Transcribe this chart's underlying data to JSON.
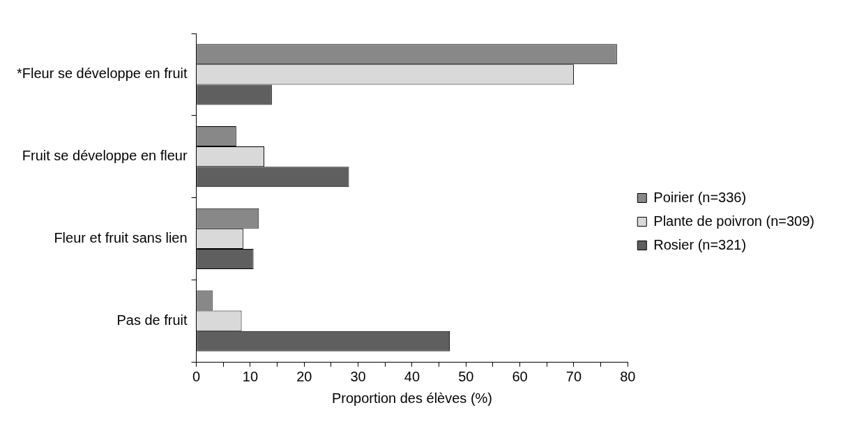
{
  "chart_data": {
    "type": "bar",
    "orientation": "horizontal",
    "xlabel": "Proportion des élèves (%)",
    "categories": [
      "*Fleur se développe en fruit",
      "Fruit se développe en fleur",
      "Fleur et fruit sans lien",
      "Pas de fruit"
    ],
    "series": [
      {
        "name": "Poirier (n=336)",
        "color": "#888888",
        "values": [
          78,
          7.4,
          11.6,
          3.0
        ]
      },
      {
        "name": "Plante de poivron (n=309)",
        "color": "#d9d9d9",
        "values": [
          70,
          12.6,
          8.7,
          8.4
        ]
      },
      {
        "name": "Rosier (n=321)",
        "color": "#5f5f5f",
        "values": [
          14,
          28.3,
          10.6,
          47
        ]
      }
    ],
    "xlim": [
      0,
      80
    ],
    "xticks": [
      0,
      {
        "value": 5,
        "label": null
      },
      10,
      {
        "value": 15,
        "label": null
      },
      20,
      {
        "value": 25,
        "label": null
      },
      30,
      {
        "value": 35,
        "label": null
      },
      40,
      {
        "value": 45,
        "label": null
      },
      50,
      {
        "value": 55,
        "label": null
      },
      60,
      {
        "value": 65,
        "label": null
      },
      70,
      {
        "value": 75,
        "label": null
      },
      80
    ],
    "grid": false,
    "legend": "right"
  }
}
